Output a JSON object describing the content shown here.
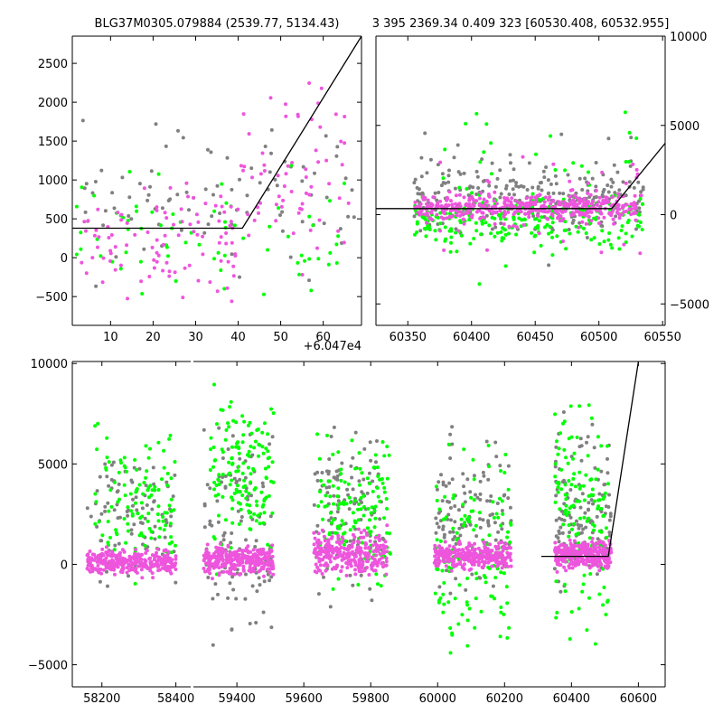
{
  "figure": {
    "background": "#ffffff",
    "colors": {
      "grey": "#808080",
      "green": "#00ff00",
      "magenta": "#ee55dd",
      "model": "#000000"
    }
  },
  "chart_data": [
    {
      "id": "top-left",
      "type": "scatter",
      "title": "BLG37M0305.079884 (2539.77, 5134.43)",
      "xlim": [
        1,
        69
      ],
      "ylim": [
        -870,
        2850
      ],
      "xticks": [
        10,
        20,
        30,
        40,
        50,
        60
      ],
      "yticks": [
        -500,
        0,
        500,
        1000,
        1500,
        2000,
        2500
      ],
      "x_offset_label": "+6.047e4",
      "yaxis_side": "left",
      "model": {
        "x": [
          1,
          41,
          69
        ],
        "y": [
          380,
          380,
          2850
        ]
      },
      "series": [
        {
          "name": "grey",
          "color": "#808080",
          "seed": 11,
          "n": 90,
          "clusters": [
            {
              "x": [
                2,
                68
              ],
              "y": [
                -500,
                2100
              ],
              "w": 1
            }
          ]
        },
        {
          "name": "green",
          "color": "#00ff00",
          "seed": 12,
          "n": 70,
          "clusters": [
            {
              "x": [
                2,
                66
              ],
              "y": [
                -850,
                1400
              ],
              "w": 1
            }
          ]
        },
        {
          "name": "magenta",
          "color": "#ee55dd",
          "seed": 13,
          "n": 160,
          "clusters": [
            {
              "x": [
                2,
                40
              ],
              "y": [
                -700,
                1200
              ],
              "w": 0.6
            },
            {
              "x": [
                40,
                66
              ],
              "y": [
                -500,
                2800
              ],
              "w": 0.4
            }
          ]
        }
      ]
    },
    {
      "id": "top-right",
      "type": "scatter",
      "title": "3 395 2369.34 0.409 323 [60530.408, 60532.955]",
      "xlim": [
        60325,
        60552
      ],
      "ylim": [
        -6200,
        10000
      ],
      "xticks": [
        60350,
        60400,
        60450,
        60500,
        60550
      ],
      "yticks": [
        -5000,
        0,
        5000,
        10000
      ],
      "yaxis_side": "right",
      "model": {
        "x": [
          60325,
          60510,
          60552
        ],
        "y": [
          340,
          340,
          4000
        ]
      },
      "series": [
        {
          "name": "grey",
          "color": "#808080",
          "seed": 21,
          "n": 260,
          "clusters": [
            {
              "x": [
                60355,
                60535
              ],
              "y": [
                -1500,
                3500
              ],
              "w": 0.85
            },
            {
              "x": [
                60355,
                60535
              ],
              "y": [
                -3500,
                7500
              ],
              "w": 0.15
            }
          ]
        },
        {
          "name": "green",
          "color": "#00ff00",
          "seed": 22,
          "n": 280,
          "clusters": [
            {
              "x": [
                60355,
                60535
              ],
              "y": [
                -2500,
                1800
              ],
              "w": 0.85
            },
            {
              "x": [
                60355,
                60535
              ],
              "y": [
                -5500,
                9800
              ],
              "w": 0.15
            }
          ]
        },
        {
          "name": "magenta",
          "color": "#ee55dd",
          "seed": 23,
          "n": 480,
          "clusters": [
            {
              "x": [
                60355,
                60530
              ],
              "y": [
                -500,
                1300
              ],
              "w": 0.8
            },
            {
              "x": [
                60355,
                60535
              ],
              "y": [
                -3000,
                4000
              ],
              "w": 0.2
            }
          ]
        }
      ]
    },
    {
      "id": "bottom",
      "type": "scatter",
      "title": "",
      "xlim": [
        58120,
        60680
      ],
      "ylim": [
        -6100,
        10100
      ],
      "yticks": [
        -5000,
        0,
        5000,
        10000
      ],
      "yaxis_side": "left",
      "panels": [
        {
          "xlim": [
            58120,
            58440
          ],
          "xticks": [
            58200,
            58400
          ]
        },
        {
          "xlim": [
            59270,
            60680
          ],
          "xticks": [
            59400,
            59600,
            59800,
            60000,
            60200,
            60400,
            60600
          ]
        }
      ],
      "model": {
        "x": [
          60310,
          60510,
          60600
        ],
        "y": [
          400,
          400,
          10100
        ]
      },
      "series": [
        {
          "name": "grey",
          "color": "#808080",
          "seed": 31,
          "n": 600,
          "clusters": [
            {
              "x": [
                58160,
                58400
              ],
              "y": [
                -2000,
                6500
              ],
              "w": 0.17
            },
            {
              "x": [
                59300,
                59510
              ],
              "y": [
                -5200,
                9000
              ],
              "w": 0.2
            },
            {
              "x": [
                59630,
                59840
              ],
              "y": [
                -3000,
                8500
              ],
              "w": 0.2
            },
            {
              "x": [
                59990,
                60220
              ],
              "y": [
                -3000,
                8000
              ],
              "w": 0.2
            },
            {
              "x": [
                60350,
                60520
              ],
              "y": [
                -3500,
                8000
              ],
              "w": 0.23
            }
          ]
        },
        {
          "name": "green",
          "color": "#00ff00",
          "seed": 32,
          "n": 700,
          "clusters": [
            {
              "x": [
                58180,
                58400
              ],
              "y": [
                -1500,
                8000
              ],
              "w": 0.17
            },
            {
              "x": [
                59320,
                59510
              ],
              "y": [
                -1000,
                10000
              ],
              "w": 0.22
            },
            {
              "x": [
                59640,
                59860
              ],
              "y": [
                -2500,
                7500
              ],
              "w": 0.2
            },
            {
              "x": [
                59990,
                60220
              ],
              "y": [
                -6000,
                7000
              ],
              "w": 0.2
            },
            {
              "x": [
                60350,
                60510
              ],
              "y": [
                -5700,
                10000
              ],
              "w": 0.21
            }
          ]
        },
        {
          "name": "magenta",
          "color": "#ee55dd",
          "seed": 33,
          "n": 1500,
          "clusters": [
            {
              "x": [
                58160,
                58400
              ],
              "y": [
                -800,
                1000
              ],
              "w": 0.2
            },
            {
              "x": [
                59300,
                59510
              ],
              "y": [
                -800,
                1200
              ],
              "w": 0.2
            },
            {
              "x": [
                59630,
                59850
              ],
              "y": [
                -1000,
                2000
              ],
              "w": 0.2
            },
            {
              "x": [
                59990,
                60220
              ],
              "y": [
                -500,
                1300
              ],
              "w": 0.2
            },
            {
              "x": [
                60350,
                60520
              ],
              "y": [
                -500,
                1500
              ],
              "w": 0.2
            }
          ]
        }
      ]
    }
  ]
}
